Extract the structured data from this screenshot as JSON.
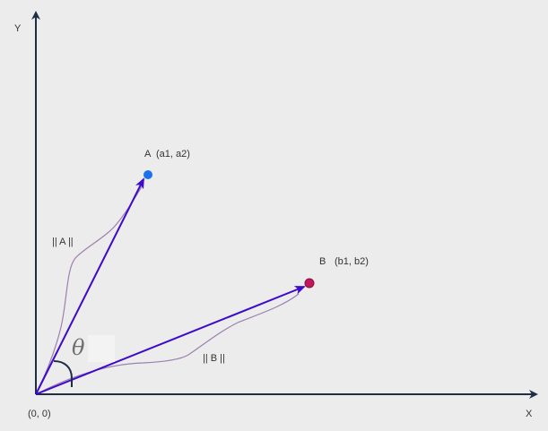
{
  "axes": {
    "y_label": "Y",
    "x_label": "X",
    "origin_label": "(0, 0)"
  },
  "points": {
    "a": {
      "name": "A",
      "coords": "(a1, a2)",
      "color": "#1a73e8"
    },
    "b": {
      "name": "B",
      "coords": "(b1, b2)",
      "color": "#c2185b"
    }
  },
  "vectors": {
    "a_norm_label": "|| A ||",
    "b_norm_label": "|| B ||",
    "vector_color": "#3d0acc",
    "brace_color": "#9c7fb0"
  },
  "angle": {
    "symbol": "θ"
  },
  "colors": {
    "axis": "#1e2f44",
    "background": "#ececec"
  }
}
